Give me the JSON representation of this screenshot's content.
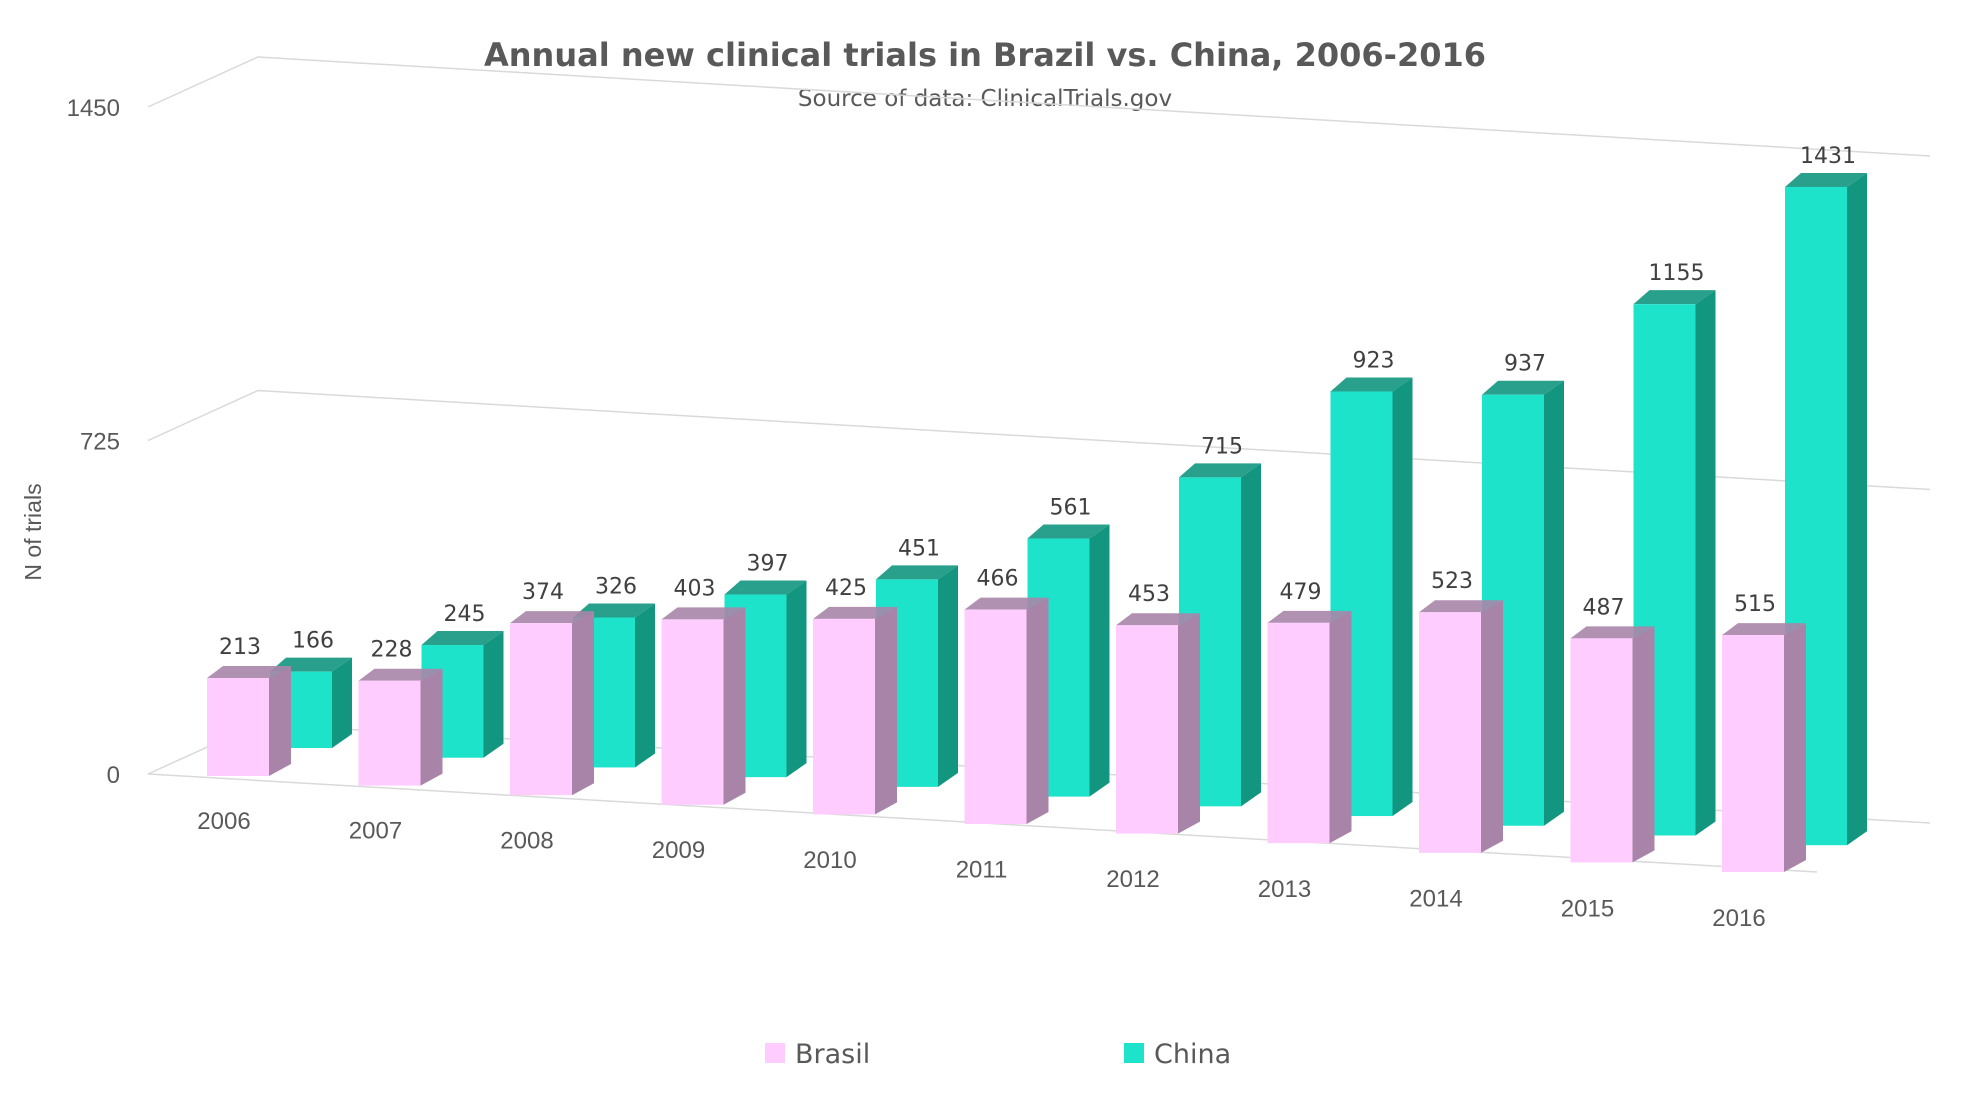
{
  "chart_data": {
    "type": "bar",
    "title": "Annual new clinical trials in Brazil vs. China, 2006-2016",
    "subtitle": "Source of data: ClinicalTrials.gov",
    "xlabel": "",
    "ylabel": "N of trials",
    "ylim": [
      0,
      1450
    ],
    "yticks": [
      "0",
      "725",
      "1450"
    ],
    "categories": [
      "2006",
      "2007",
      "2008",
      "2009",
      "2010",
      "2011",
      "2012",
      "2013",
      "2014",
      "2015",
      "2016"
    ],
    "series": [
      {
        "name": "Brasil",
        "values": [
          213,
          228,
          374,
          403,
          425,
          466,
          453,
          479,
          523,
          487,
          515
        ],
        "color": "#FFCCFF",
        "side_color": "#A885A8"
      },
      {
        "name": "China",
        "values": [
          166,
          245,
          326,
          397,
          451,
          561,
          715,
          923,
          937,
          1155,
          1431
        ],
        "color": "#1DE3CB",
        "side_color": "#12967F"
      }
    ],
    "grid": true,
    "legend": "bottom",
    "style": "3d-clustered-column"
  }
}
